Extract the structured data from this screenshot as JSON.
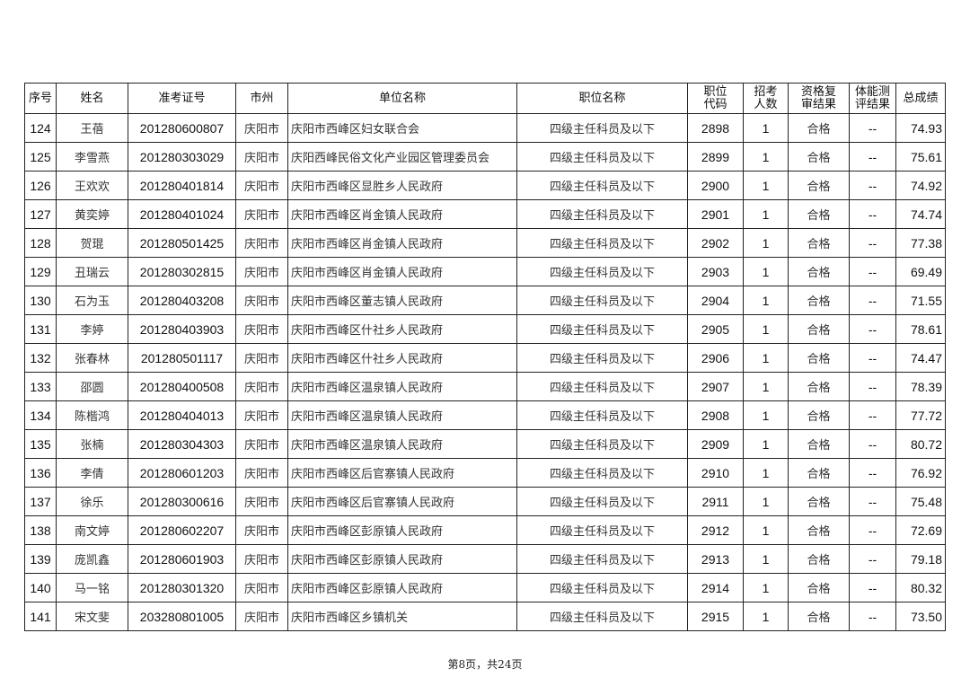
{
  "headers": [
    "序号",
    "姓名",
    "准考证号",
    "市州",
    "单位名称",
    "职位名称",
    "职位\n代码",
    "招考\n人数",
    "资格复\n审结果",
    "体能测\n评结果",
    "总成绩"
  ],
  "rows": [
    [
      "124",
      "王蓓",
      "201280600807",
      "庆阳市",
      "庆阳市西峰区妇女联合会",
      "四级主任科员及以下",
      "2898",
      "1",
      "合格",
      "--",
      "74.93"
    ],
    [
      "125",
      "李雪燕",
      "201280303029",
      "庆阳市",
      "庆阳西峰民俗文化产业园区管理委员会",
      "四级主任科员及以下",
      "2899",
      "1",
      "合格",
      "--",
      "75.61"
    ],
    [
      "126",
      "王欢欢",
      "201280401814",
      "庆阳市",
      "庆阳市西峰区显胜乡人民政府",
      "四级主任科员及以下",
      "2900",
      "1",
      "合格",
      "--",
      "74.92"
    ],
    [
      "127",
      "黄奕婷",
      "201280401024",
      "庆阳市",
      "庆阳市西峰区肖金镇人民政府",
      "四级主任科员及以下",
      "2901",
      "1",
      "合格",
      "--",
      "74.74"
    ],
    [
      "128",
      "贺琨",
      "201280501425",
      "庆阳市",
      "庆阳市西峰区肖金镇人民政府",
      "四级主任科员及以下",
      "2902",
      "1",
      "合格",
      "--",
      "77.38"
    ],
    [
      "129",
      "丑瑞云",
      "201280302815",
      "庆阳市",
      "庆阳市西峰区肖金镇人民政府",
      "四级主任科员及以下",
      "2903",
      "1",
      "合格",
      "--",
      "69.49"
    ],
    [
      "130",
      "石为玉",
      "201280403208",
      "庆阳市",
      "庆阳市西峰区董志镇人民政府",
      "四级主任科员及以下",
      "2904",
      "1",
      "合格",
      "--",
      "71.55"
    ],
    [
      "131",
      "李婷",
      "201280403903",
      "庆阳市",
      "庆阳市西峰区什社乡人民政府",
      "四级主任科员及以下",
      "2905",
      "1",
      "合格",
      "--",
      "78.61"
    ],
    [
      "132",
      "张春林",
      "201280501117",
      "庆阳市",
      "庆阳市西峰区什社乡人民政府",
      "四级主任科员及以下",
      "2906",
      "1",
      "合格",
      "--",
      "74.47"
    ],
    [
      "133",
      "邵圆",
      "201280400508",
      "庆阳市",
      "庆阳市西峰区温泉镇人民政府",
      "四级主任科员及以下",
      "2907",
      "1",
      "合格",
      "--",
      "78.39"
    ],
    [
      "134",
      "陈楷鸿",
      "201280404013",
      "庆阳市",
      "庆阳市西峰区温泉镇人民政府",
      "四级主任科员及以下",
      "2908",
      "1",
      "合格",
      "--",
      "77.72"
    ],
    [
      "135",
      "张楠",
      "201280304303",
      "庆阳市",
      "庆阳市西峰区温泉镇人民政府",
      "四级主任科员及以下",
      "2909",
      "1",
      "合格",
      "--",
      "80.72"
    ],
    [
      "136",
      "李倩",
      "201280601203",
      "庆阳市",
      "庆阳市西峰区后官寨镇人民政府",
      "四级主任科员及以下",
      "2910",
      "1",
      "合格",
      "--",
      "76.92"
    ],
    [
      "137",
      "徐乐",
      "201280300616",
      "庆阳市",
      "庆阳市西峰区后官寨镇人民政府",
      "四级主任科员及以下",
      "2911",
      "1",
      "合格",
      "--",
      "75.48"
    ],
    [
      "138",
      "南文婷",
      "201280602207",
      "庆阳市",
      "庆阳市西峰区彭原镇人民政府",
      "四级主任科员及以下",
      "2912",
      "1",
      "合格",
      "--",
      "72.69"
    ],
    [
      "139",
      "庞凯鑫",
      "201280601903",
      "庆阳市",
      "庆阳市西峰区彭原镇人民政府",
      "四级主任科员及以下",
      "2913",
      "1",
      "合格",
      "--",
      "79.18"
    ],
    [
      "140",
      "马一铭",
      "201280301320",
      "庆阳市",
      "庆阳市西峰区彭原镇人民政府",
      "四级主任科员及以下",
      "2914",
      "1",
      "合格",
      "--",
      "80.32"
    ],
    [
      "141",
      "宋文斐",
      "203280801005",
      "庆阳市",
      "庆阳市西峰区乡镇机关",
      "四级主任科员及以下",
      "2915",
      "1",
      "合格",
      "--",
      "73.50"
    ]
  ],
  "footer": "第8页，共24页"
}
